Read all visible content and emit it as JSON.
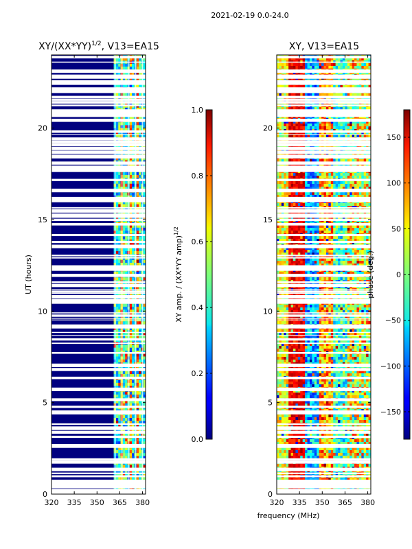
{
  "suptitle": "2021-02-19 0.0-24.0",
  "chart_data": [
    {
      "type": "heatmap",
      "title": "XY/(XX*YY)^1/2, V13=EA15",
      "title_main": "XY/(XX*YY)",
      "title_sup": "1/2",
      "title_tail": ", V13=EA15",
      "xlabel": "",
      "ylabel": "UT (hours)",
      "xlim": [
        320,
        382
      ],
      "ylim": [
        0,
        24
      ],
      "xticks": [
        320,
        335,
        350,
        365,
        380
      ],
      "yticks": [
        0,
        5,
        10,
        15,
        20
      ],
      "colorbar": {
        "label_main": "XY amp. / (XX*YY amp)",
        "label_sup": "1/2",
        "range": [
          0.0,
          1.0
        ],
        "ticks": [
          "0.0",
          "0.2",
          "0.4",
          "0.6",
          "0.8",
          "1.0"
        ],
        "tick_values": [
          0.0,
          0.2,
          0.4,
          0.6,
          0.8,
          1.0
        ],
        "colormap": "jet"
      },
      "signal_band_mhz": [
        361,
        382
      ]
    },
    {
      "type": "heatmap",
      "title": "XY, V13=EA15",
      "xlabel": "frequency (MHz)",
      "ylabel": "",
      "xlim": [
        320,
        382
      ],
      "ylim": [
        0,
        24
      ],
      "xticks": [
        320,
        335,
        350,
        365,
        380
      ],
      "yticks": [
        0,
        5,
        10,
        15,
        20
      ],
      "colorbar": {
        "label": "phase (deg.)",
        "range": [
          -180,
          180
        ],
        "ticks": [
          "150",
          "100",
          "50",
          "0",
          "−50",
          "−100",
          "−150"
        ],
        "tick_values": [
          150,
          100,
          50,
          0,
          -50,
          -100,
          -150
        ],
        "colormap": "jet"
      }
    }
  ]
}
